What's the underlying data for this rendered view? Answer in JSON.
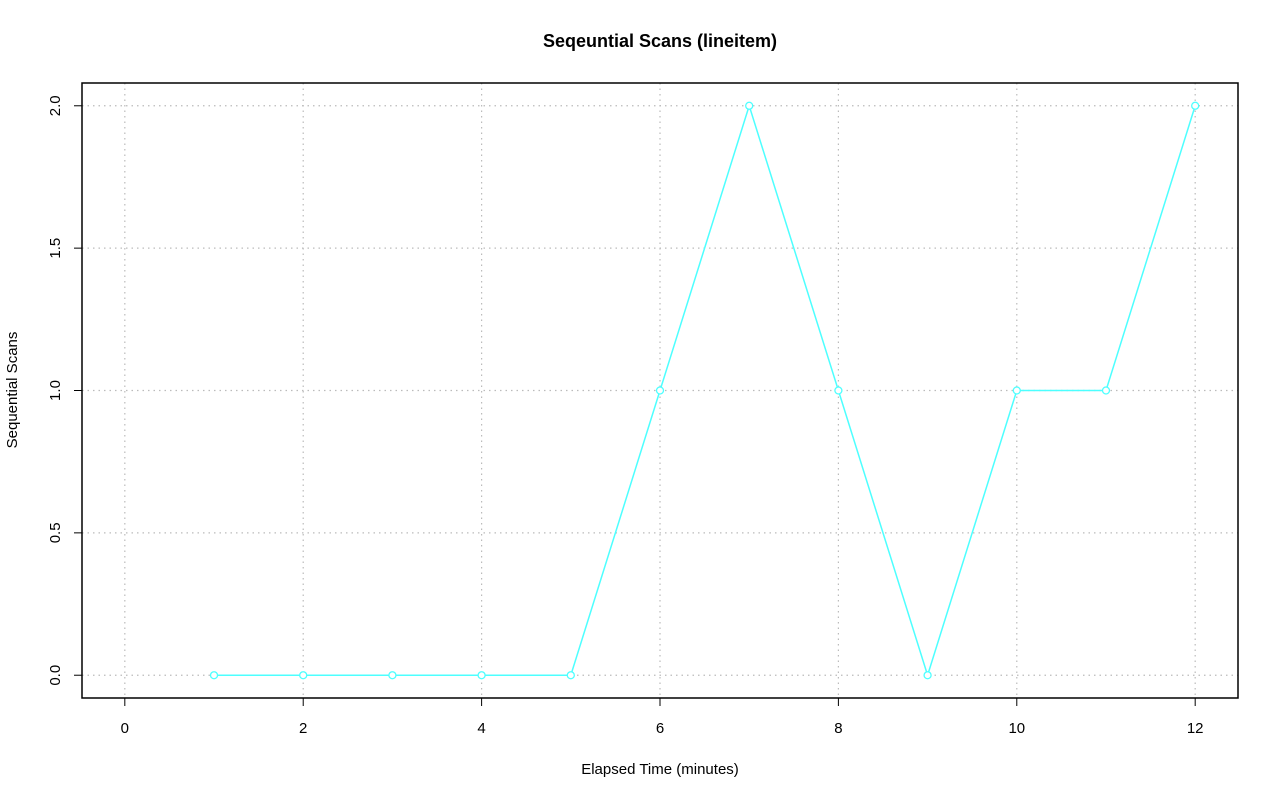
{
  "chart_data": {
    "type": "line",
    "title": "Seqeuntial Scans (lineitem)",
    "x_label": "Elapsed Time (minutes)",
    "y_label": "Sequential Scans",
    "x": [
      1,
      2,
      3,
      4,
      5,
      6,
      7,
      8,
      9,
      10,
      11,
      12
    ],
    "series": [
      {
        "name": "lineitem",
        "color": "#4dffff",
        "values": [
          0,
          0,
          0,
          0,
          0,
          1,
          2,
          1,
          0,
          1,
          1,
          2
        ]
      }
    ],
    "xlim": [
      -0.48,
      12.48
    ],
    "xticks": [
      0,
      2,
      4,
      6,
      8,
      10,
      12
    ],
    "ylim": [
      -0.08,
      2.08
    ],
    "yticks": [
      {
        "value": 0,
        "label": "0.0"
      },
      0.5,
      {
        "value": 1,
        "label": "1.0"
      },
      1.5,
      {
        "value": 2,
        "label": "2.0"
      }
    ],
    "grid": true
  }
}
